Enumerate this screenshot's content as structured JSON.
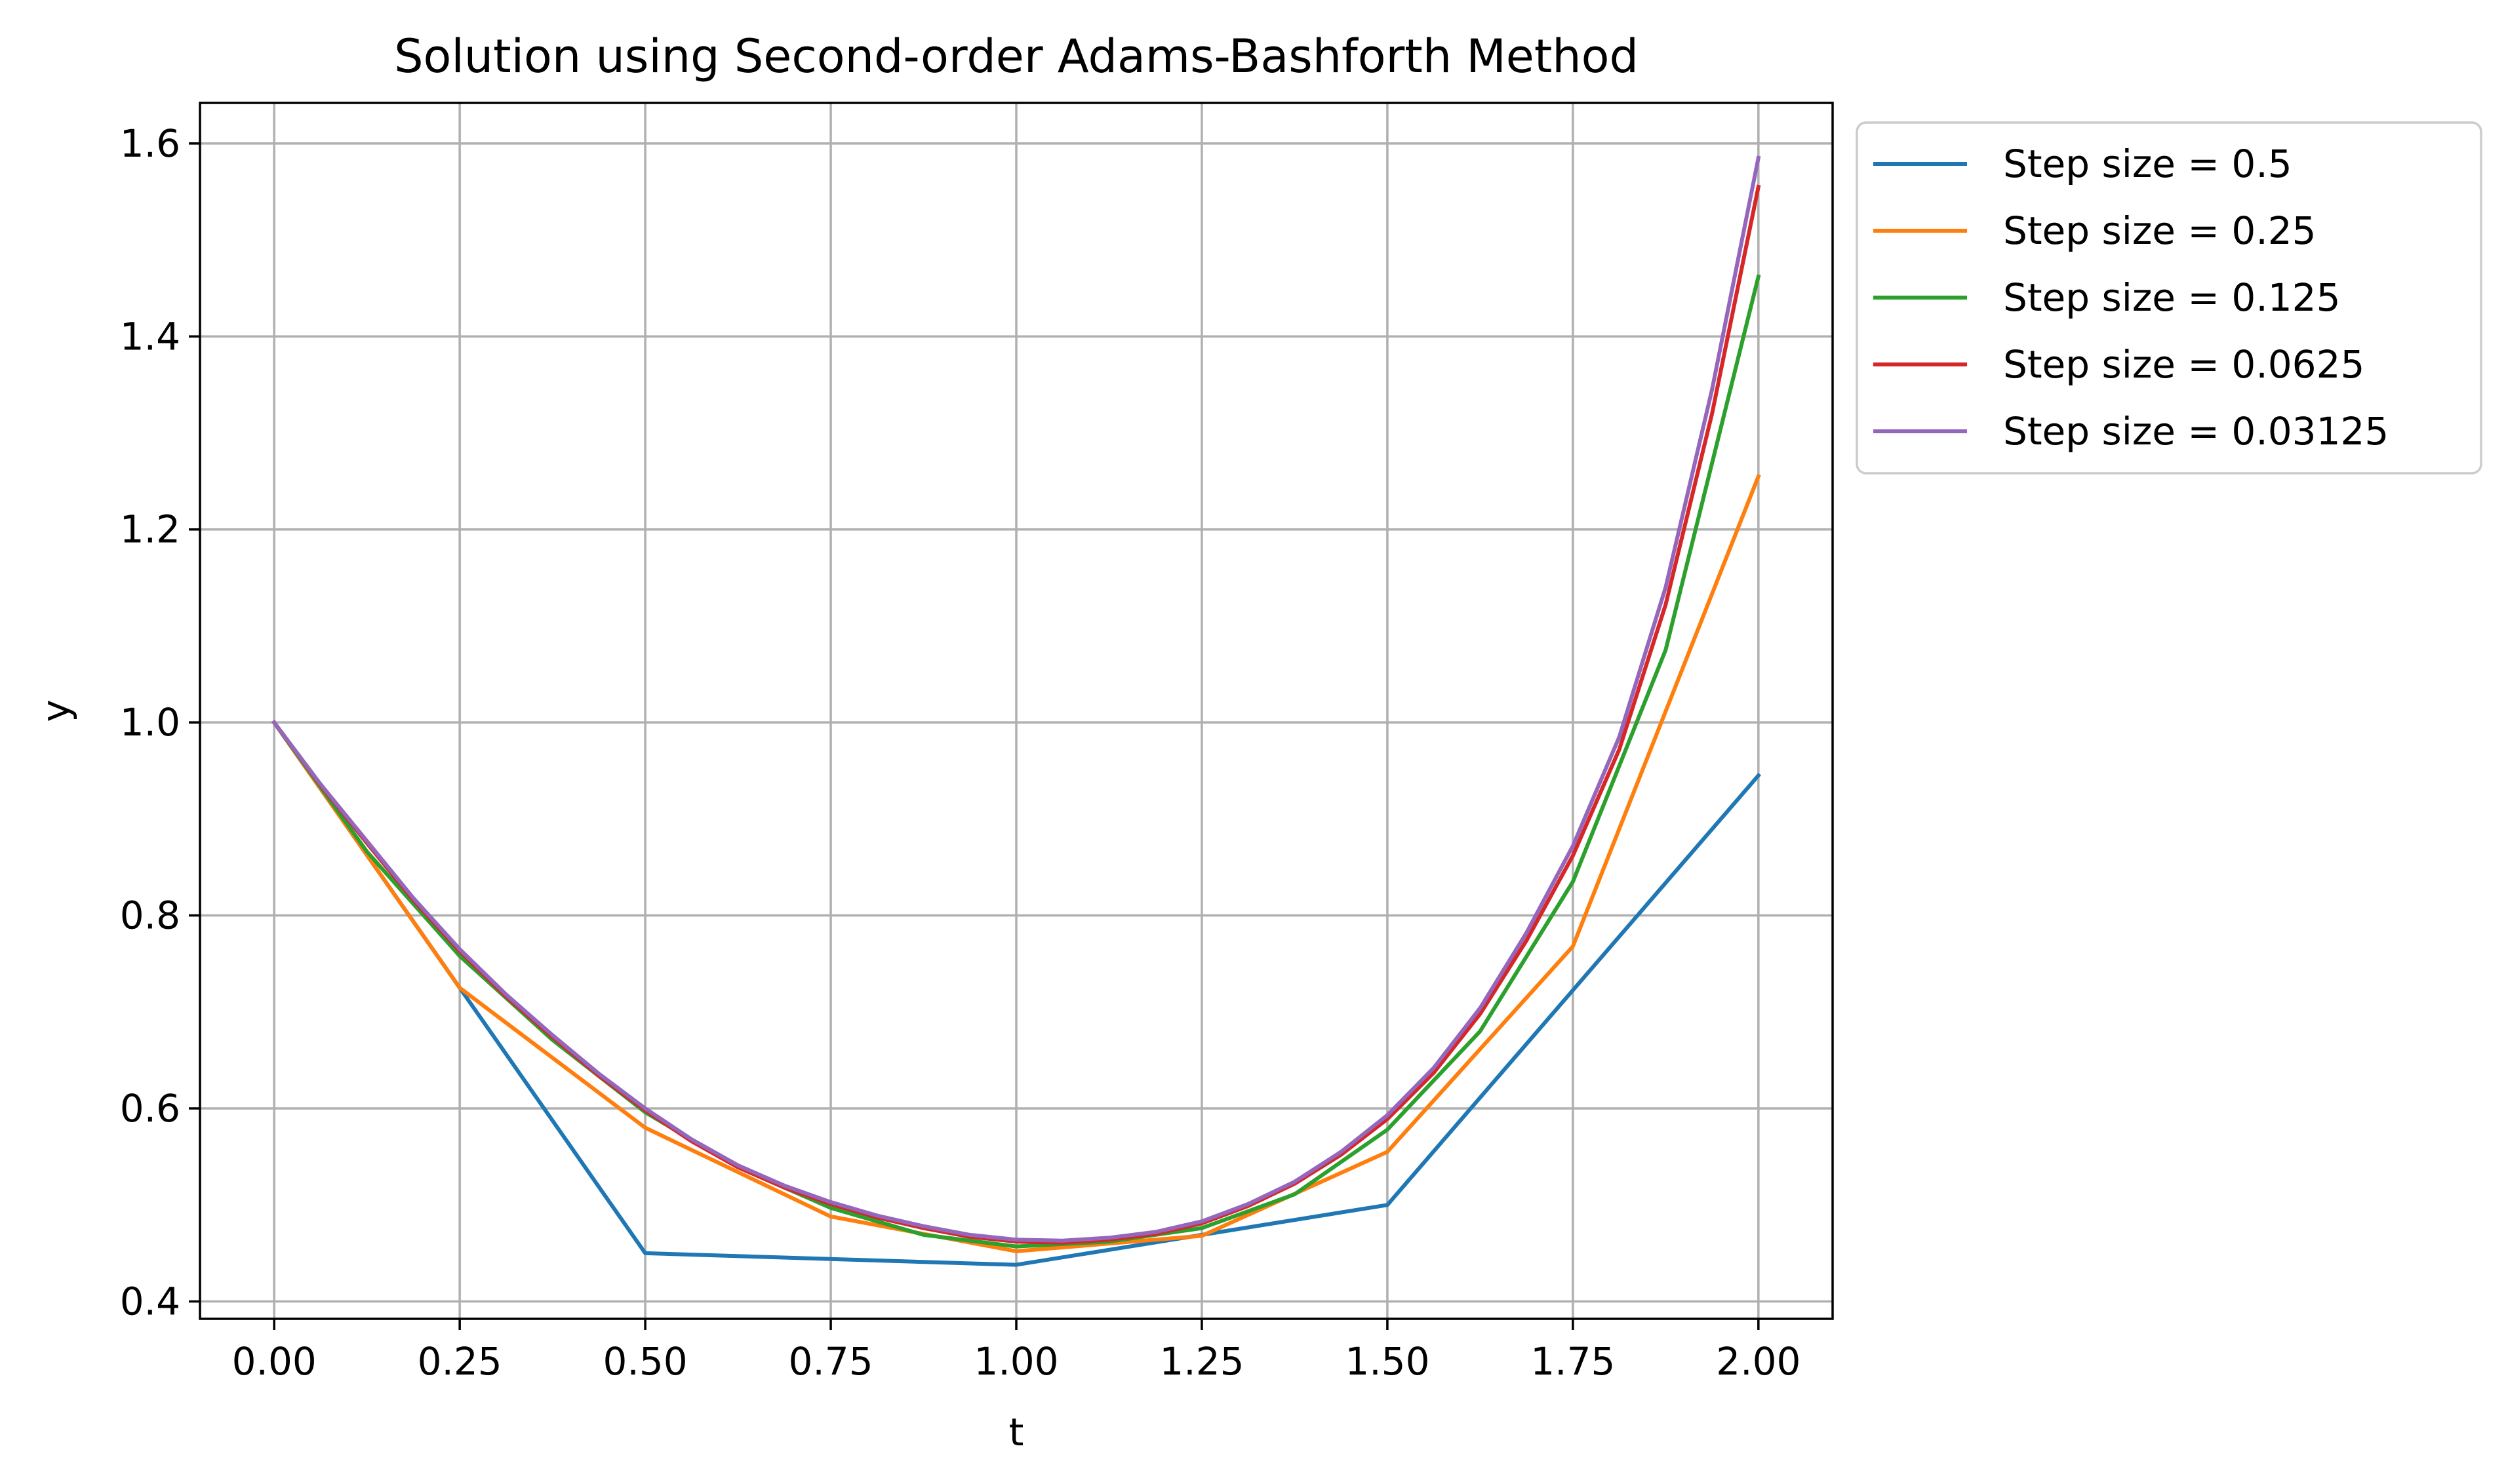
{
  "chart_data": {
    "type": "line",
    "title": "Solution using Second-order Adams-Bashforth Method",
    "xlabel": "t",
    "ylabel": "y",
    "xlim": [
      -0.1,
      2.1
    ],
    "ylim": [
      0.382,
      1.642
    ],
    "xticks": [
      "0.00",
      "0.25",
      "0.50",
      "0.75",
      "1.00",
      "1.25",
      "1.50",
      "1.75",
      "2.00"
    ],
    "yticks": [
      "0.4",
      "0.6",
      "0.8",
      "1.0",
      "1.2",
      "1.4",
      "1.6"
    ],
    "grid": true,
    "legend_position": "outside-upper-right",
    "colors": {
      "step_0_5": "#1f77b4",
      "step_0_25": "#ff7f0e",
      "step_0_125": "#2ca02c",
      "step_0_0625": "#d62728",
      "step_0_03125": "#9467bd",
      "grid": "#b0b0b0",
      "axes": "#000000"
    },
    "series": [
      {
        "name": "Step size = 0.5",
        "color": "#1f77b4",
        "x": [
          0,
          0.25,
          0.5,
          1.0,
          1.5,
          2.0
        ],
        "y": [
          1.0,
          0.725,
          0.45,
          0.438,
          0.5,
          0.945
        ]
      },
      {
        "name": "Step size = 0.25",
        "color": "#ff7f0e",
        "x": [
          0,
          0.25,
          0.5,
          0.75,
          1.0,
          1.25,
          1.5,
          1.75,
          2.0
        ],
        "y": [
          1.0,
          0.725,
          0.58,
          0.488,
          0.452,
          0.468,
          0.555,
          0.768,
          1.255
        ]
      },
      {
        "name": "Step size = 0.125",
        "color": "#2ca02c",
        "x": [
          0,
          0.125,
          0.25,
          0.375,
          0.5,
          0.625,
          0.75,
          0.875,
          1.0,
          1.125,
          1.25,
          1.375,
          1.5,
          1.625,
          1.75,
          1.875,
          2.0
        ],
        "y": [
          1.0,
          0.866,
          0.758,
          0.671,
          0.596,
          0.539,
          0.497,
          0.469,
          0.457,
          0.462,
          0.476,
          0.511,
          0.578,
          0.68,
          0.835,
          1.075,
          1.462
        ]
      },
      {
        "name": "Step size = 0.0625",
        "color": "#d62728",
        "x": [
          0,
          0.0625,
          0.125,
          0.1875,
          0.25,
          0.3125,
          0.375,
          0.4375,
          0.5,
          0.5625,
          0.625,
          0.6875,
          0.75,
          0.8125,
          0.875,
          0.9375,
          1.0,
          1.0625,
          1.125,
          1.1875,
          1.25,
          1.3125,
          1.375,
          1.4375,
          1.5,
          1.5625,
          1.625,
          1.6875,
          1.75,
          1.8125,
          1.875,
          1.9375,
          2.0
        ],
        "y": [
          1.0,
          0.935,
          0.875,
          0.816,
          0.763,
          0.716,
          0.674,
          0.634,
          0.598,
          0.566,
          0.539,
          0.518,
          0.501,
          0.487,
          0.476,
          0.467,
          0.462,
          0.461,
          0.464,
          0.47,
          0.481,
          0.499,
          0.522,
          0.552,
          0.589,
          0.637,
          0.698,
          0.774,
          0.862,
          0.972,
          1.122,
          1.32,
          1.555
        ]
      },
      {
        "name": "Step size = 0.03125",
        "color": "#9467bd",
        "x": [
          0,
          0.0625,
          0.125,
          0.1875,
          0.25,
          0.3125,
          0.375,
          0.4375,
          0.5,
          0.5625,
          0.625,
          0.6875,
          0.75,
          0.8125,
          0.875,
          0.9375,
          1.0,
          1.0625,
          1.125,
          1.1875,
          1.25,
          1.3125,
          1.375,
          1.4375,
          1.5,
          1.5625,
          1.625,
          1.6875,
          1.75,
          1.8125,
          1.875,
          1.9375,
          2.0
        ],
        "y": [
          1.0,
          0.936,
          0.877,
          0.818,
          0.765,
          0.718,
          0.676,
          0.636,
          0.6,
          0.568,
          0.541,
          0.52,
          0.503,
          0.489,
          0.478,
          0.469,
          0.464,
          0.463,
          0.466,
          0.472,
          0.483,
          0.501,
          0.524,
          0.555,
          0.593,
          0.642,
          0.704,
          0.782,
          0.872,
          0.985,
          1.14,
          1.345,
          1.585
        ]
      }
    ]
  }
}
